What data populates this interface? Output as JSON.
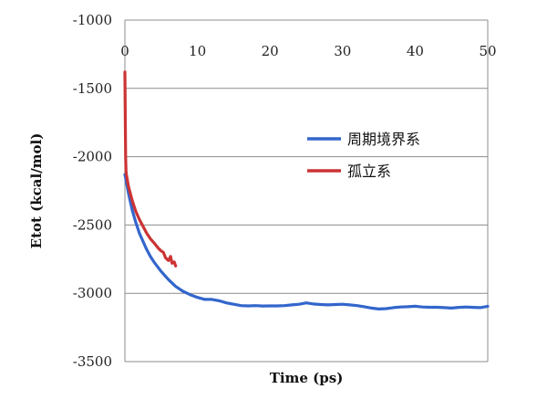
{
  "chart_data": {
    "type": "line",
    "xlabel": "Time (ps)",
    "ylabel": "Etot (kcal/mol)",
    "xlim": [
      0,
      50
    ],
    "ylim": [
      -3500,
      -1000
    ],
    "x_ticks": [
      "0",
      "10",
      "20",
      "30",
      "40",
      "50"
    ],
    "y_ticks": [
      "-1000",
      "-1500",
      "-2000",
      "-2500",
      "-3000",
      "-3500"
    ],
    "x_tick_values": [
      0,
      10,
      20,
      30,
      40,
      50
    ],
    "y_tick_values": [
      -1000,
      -1500,
      -2000,
      -2500,
      -3000,
      -3500
    ],
    "x_axis_position": "top",
    "gridlines": "horizontal",
    "legend_position": "right",
    "series": [
      {
        "name": "周期境界系",
        "color": "#3366cc",
        "x": [
          0,
          0.5,
          1,
          1.5,
          2,
          2.5,
          3,
          3.5,
          4,
          5,
          6,
          7,
          8,
          9,
          10,
          11,
          12,
          13,
          14,
          15,
          16,
          17,
          18,
          19,
          20,
          21,
          22,
          23,
          24,
          25,
          26,
          27,
          28,
          29,
          30,
          31,
          32,
          33,
          34,
          35,
          36,
          37,
          38,
          39,
          40,
          41,
          42,
          43,
          44,
          45,
          46,
          47,
          48,
          49,
          50
        ],
        "y": [
          -2130,
          -2270,
          -2390,
          -2480,
          -2560,
          -2620,
          -2680,
          -2730,
          -2770,
          -2840,
          -2900,
          -2950,
          -2985,
          -3010,
          -3030,
          -3045,
          -3045,
          -3055,
          -3070,
          -3080,
          -3090,
          -3092,
          -3090,
          -3093,
          -3092,
          -3092,
          -3090,
          -3085,
          -3080,
          -3070,
          -3078,
          -3082,
          -3085,
          -3082,
          -3080,
          -3085,
          -3090,
          -3098,
          -3108,
          -3115,
          -3112,
          -3105,
          -3100,
          -3098,
          -3095,
          -3100,
          -3102,
          -3102,
          -3105,
          -3108,
          -3103,
          -3100,
          -3103,
          -3105,
          -3095
        ]
      },
      {
        "name": "孤立系",
        "color": "#cc3333",
        "x": [
          0,
          0.05,
          0.1,
          0.15,
          0.2,
          0.5,
          1,
          1.5,
          2,
          2.5,
          3,
          3.5,
          4,
          4.3,
          4.6,
          5,
          5.3,
          5.6,
          6,
          6.3,
          6.5,
          6.8,
          7
        ],
        "y": [
          -1380,
          -1700,
          -2000,
          -2100,
          -2130,
          -2220,
          -2320,
          -2400,
          -2460,
          -2510,
          -2560,
          -2600,
          -2630,
          -2650,
          -2670,
          -2690,
          -2700,
          -2740,
          -2760,
          -2730,
          -2780,
          -2770,
          -2800
        ]
      }
    ]
  }
}
